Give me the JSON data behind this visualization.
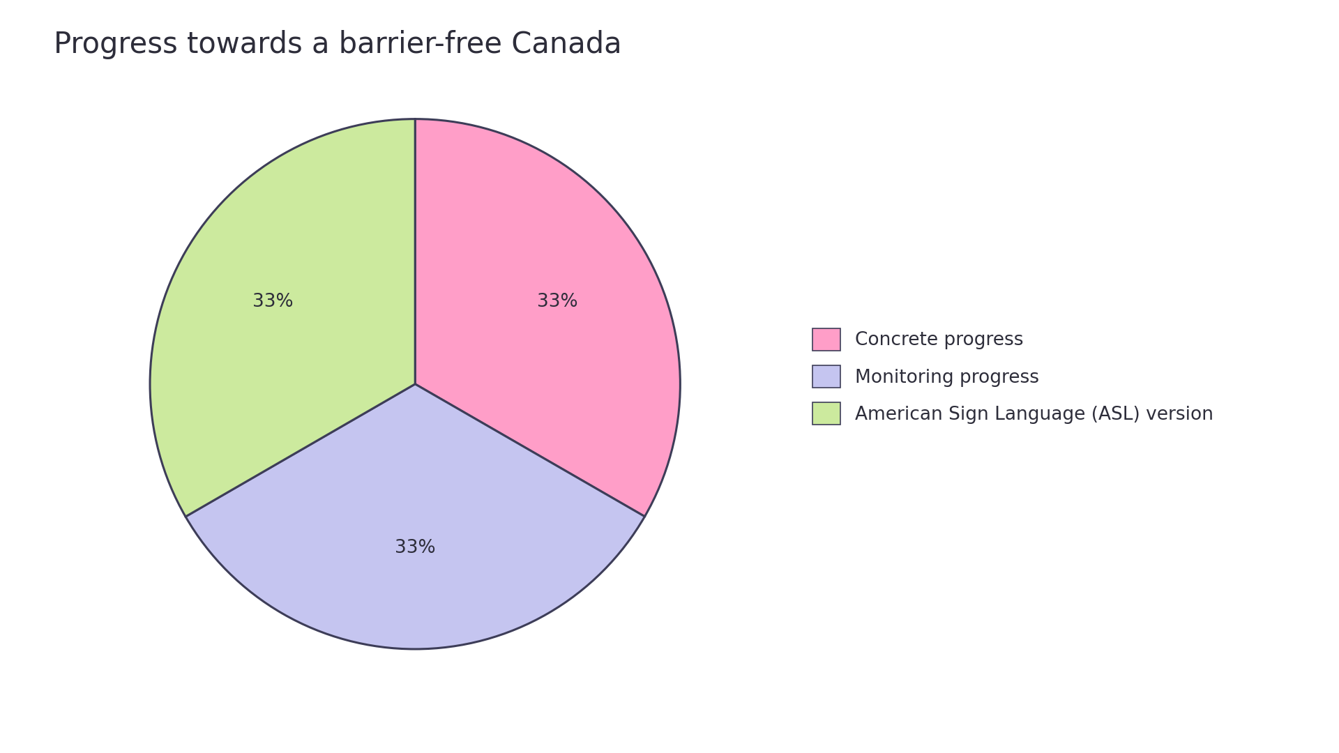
{
  "title": "Progress towards a barrier-free Canada",
  "slices": [
    {
      "label": "Concrete progress",
      "value": 33.33,
      "color": "#FF9EC8"
    },
    {
      "label": "Monitoring progress",
      "value": 33.33,
      "color": "#C5C5F0"
    },
    {
      "label": "American Sign Language (ASL) version",
      "value": 33.34,
      "color": "#CCEA9E"
    }
  ],
  "pct_labels": [
    "33%",
    "33%",
    "33%"
  ],
  "title_fontsize": 30,
  "label_fontsize": 19,
  "legend_fontsize": 19,
  "background_color": "#ffffff",
  "text_color": "#2d2d3a",
  "edge_color": "#3d3d58",
  "edge_width": 2.2,
  "startangle": 90
}
